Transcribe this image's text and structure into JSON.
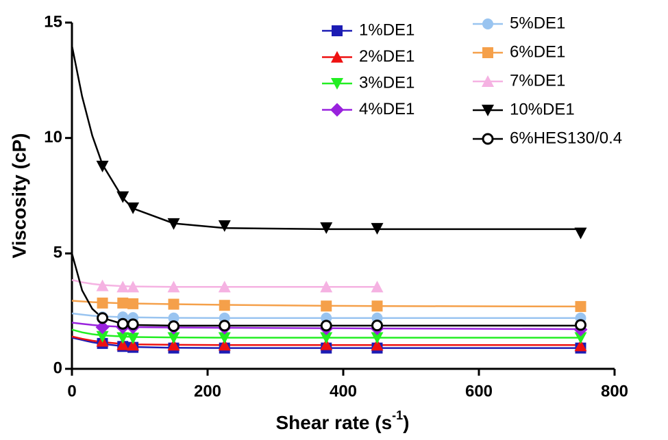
{
  "chart_data": {
    "type": "scatter",
    "ylabel": "Viscosity (cP)",
    "xlabel": [
      "Shear rate (s",
      "-1",
      ")"
    ],
    "xlim": [
      0,
      800
    ],
    "xticks": [
      0,
      200,
      400,
      600,
      800
    ],
    "ylim": [
      0,
      15
    ],
    "yticks": [
      0,
      5,
      10,
      15
    ],
    "grid": false,
    "legend": "upper right",
    "series": [
      {
        "name": "1%DE1",
        "color": "#1c1cb4",
        "marker": "square",
        "x": [
          45,
          75,
          90,
          150,
          225,
          375,
          450,
          750
        ],
        "values": [
          1.1,
          0.97,
          0.93,
          0.9,
          0.9,
          0.9,
          0.9,
          0.9
        ],
        "fit": {
          "x": [
            0,
            15,
            30,
            45,
            75,
            90,
            150,
            225,
            375,
            450,
            750
          ],
          "values": [
            1.35,
            1.25,
            1.15,
            1.08,
            0.98,
            0.95,
            0.91,
            0.9,
            0.9,
            0.9,
            0.9
          ]
        }
      },
      {
        "name": "2%DE1",
        "color": "#ee1111",
        "marker": "triangle-up",
        "x": [
          45,
          75,
          90,
          150,
          225,
          375,
          450,
          750
        ],
        "values": [
          1.2,
          1.05,
          1.03,
          1.03,
          1.03,
          1.05,
          1.03,
          1.0
        ],
        "fit": {
          "x": [
            0,
            15,
            30,
            45,
            75,
            90,
            150,
            225,
            375,
            450,
            750
          ],
          "values": [
            1.4,
            1.3,
            1.22,
            1.16,
            1.08,
            1.06,
            1.04,
            1.03,
            1.03,
            1.03,
            1.03
          ]
        }
      },
      {
        "name": "3%DE1",
        "color": "#22ee22",
        "marker": "triangle-down",
        "x": [
          45,
          75,
          90,
          150,
          225,
          375,
          450,
          750
        ],
        "values": [
          1.4,
          1.35,
          1.33,
          1.35,
          1.35,
          1.35,
          1.35,
          1.35
        ],
        "fit": {
          "x": [
            0,
            15,
            30,
            45,
            75,
            90,
            150,
            225,
            375,
            450,
            750
          ],
          "values": [
            1.7,
            1.58,
            1.5,
            1.45,
            1.4,
            1.38,
            1.36,
            1.35,
            1.35,
            1.35,
            1.35
          ]
        }
      },
      {
        "name": "4%DE1",
        "color": "#9922dd",
        "marker": "diamond",
        "x": [
          45,
          75,
          90,
          150,
          225,
          375,
          450,
          750
        ],
        "values": [
          1.8,
          1.8,
          1.8,
          1.78,
          1.78,
          1.75,
          1.75,
          1.7
        ],
        "fit": {
          "x": [
            0,
            15,
            30,
            45,
            75,
            90,
            150,
            225,
            375,
            450,
            750
          ],
          "values": [
            2.0,
            1.95,
            1.9,
            1.86,
            1.82,
            1.81,
            1.79,
            1.78,
            1.76,
            1.75,
            1.72
          ]
        }
      },
      {
        "name": "5%DE1",
        "color": "#99c4f0",
        "marker": "circle",
        "x": [
          45,
          75,
          90,
          150,
          225,
          375,
          450,
          750
        ],
        "values": [
          2.25,
          2.25,
          2.22,
          2.2,
          2.2,
          2.2,
          2.2,
          2.2
        ],
        "fit": {
          "x": [
            0,
            15,
            30,
            45,
            75,
            90,
            150,
            225,
            375,
            450,
            750
          ],
          "values": [
            2.4,
            2.35,
            2.3,
            2.27,
            2.24,
            2.23,
            2.21,
            2.2,
            2.2,
            2.2,
            2.2
          ]
        }
      },
      {
        "name": "6%DE1",
        "color": "#f5a04a",
        "marker": "square",
        "x": [
          45,
          75,
          90,
          150,
          225,
          375,
          450,
          750
        ],
        "values": [
          2.85,
          2.85,
          2.82,
          2.8,
          2.75,
          2.72,
          2.72,
          2.7
        ],
        "fit": {
          "x": [
            0,
            15,
            30,
            45,
            75,
            90,
            150,
            225,
            375,
            450,
            750
          ],
          "values": [
            2.95,
            2.92,
            2.89,
            2.87,
            2.84,
            2.83,
            2.8,
            2.77,
            2.73,
            2.72,
            2.7
          ]
        }
      },
      {
        "name": "7%DE1",
        "color": "#f5b2e2",
        "marker": "triangle-up",
        "x": [
          45,
          75,
          90,
          150,
          225,
          375,
          450
        ],
        "values": [
          3.6,
          3.55,
          3.55,
          3.55,
          3.55,
          3.55,
          3.55
        ],
        "fit": {
          "x": [
            0,
            15,
            30,
            45,
            75,
            90,
            150,
            225,
            375,
            450
          ],
          "values": [
            3.85,
            3.75,
            3.68,
            3.63,
            3.58,
            3.57,
            3.55,
            3.55,
            3.55,
            3.55
          ]
        }
      },
      {
        "name": "10%DE1",
        "color": "#000000",
        "marker": "triangle-down",
        "x": [
          45,
          75,
          90,
          150,
          225,
          375,
          450,
          750
        ],
        "values": [
          8.78,
          7.45,
          6.97,
          6.29,
          6.2,
          6.11,
          6.08,
          5.88
        ],
        "fit": {
          "x": [
            0,
            15,
            30,
            45,
            75,
            90,
            150,
            225,
            375,
            450,
            750
          ],
          "values": [
            14.0,
            11.8,
            10.1,
            8.85,
            7.4,
            6.95,
            6.3,
            6.1,
            6.05,
            6.05,
            6.05
          ]
        }
      },
      {
        "name": "6%HES130/0.4",
        "color": "#000000",
        "marker": "open-circle",
        "x": [
          45,
          75,
          90,
          150,
          225,
          375,
          450,
          750
        ],
        "values": [
          2.2,
          1.95,
          1.93,
          1.85,
          1.87,
          1.87,
          1.88,
          1.9
        ],
        "fit": {
          "x": [
            0,
            15,
            30,
            45,
            75,
            90,
            150,
            225,
            375,
            450,
            750
          ],
          "values": [
            5.0,
            3.4,
            2.6,
            2.2,
            1.95,
            1.9,
            1.87,
            1.87,
            1.87,
            1.87,
            1.87
          ]
        }
      }
    ]
  }
}
